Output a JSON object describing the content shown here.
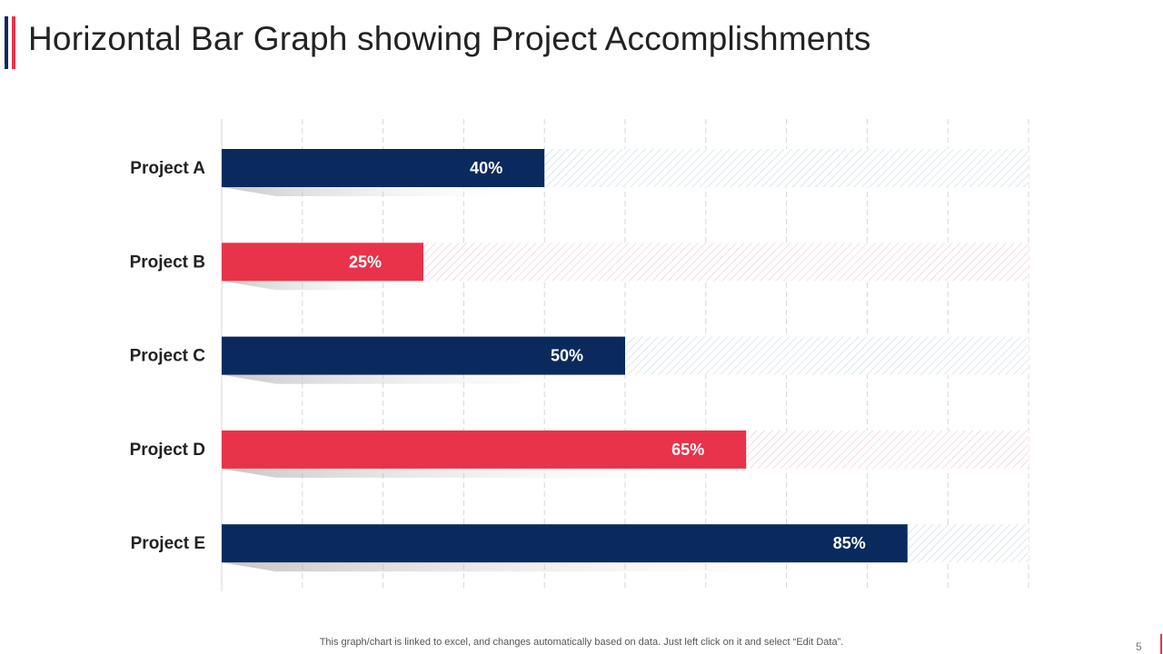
{
  "slide": {
    "title": "Horizontal Bar Graph showing Project Accomplishments",
    "footnote": "This graph/chart is linked to excel,  and changes automatically based on data. Just left click on it and select “Edit Data”.",
    "page_number": "5"
  },
  "colors": {
    "navy": "#0a2a5e",
    "red": "#e8334a",
    "navy_track": "#c9dbe3",
    "red_track": "#f3c7cf",
    "grid": "#d7d7d7",
    "label": "#222222",
    "value_label": "#ffffff"
  },
  "chart_data": {
    "type": "bar",
    "orientation": "horizontal",
    "title": "",
    "xlabel": "",
    "ylabel": "",
    "xlim": [
      0,
      100
    ],
    "grid": true,
    "categories": [
      "Project A",
      "Project B",
      "Project C",
      "Project D",
      "Project E"
    ],
    "values": [
      40,
      25,
      50,
      65,
      85
    ],
    "value_labels": [
      "40%",
      "25%",
      "50%",
      "65%",
      "85%"
    ],
    "bar_colors": [
      "navy",
      "red",
      "navy",
      "red",
      "navy"
    ],
    "track_max": 100
  }
}
